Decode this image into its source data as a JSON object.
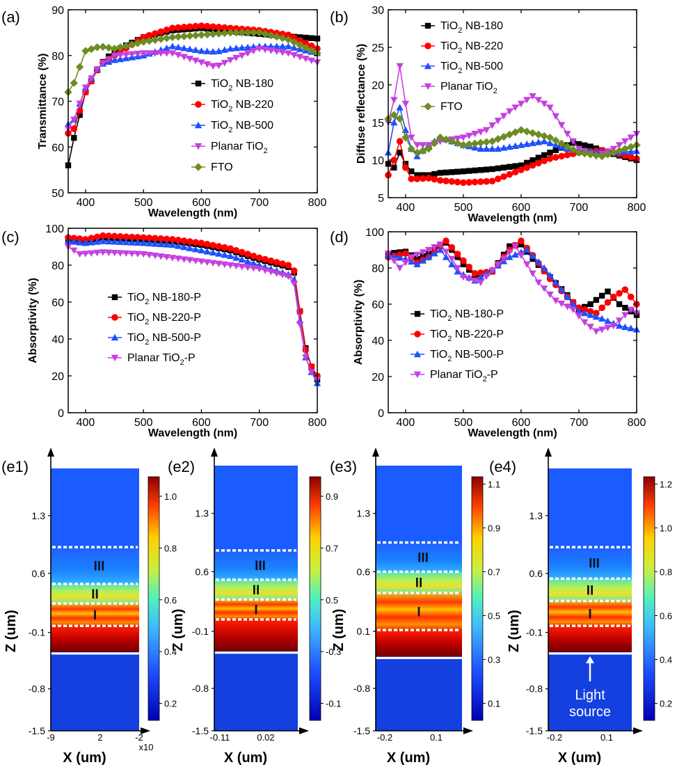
{
  "chart_data": [
    {
      "id": "a",
      "type": "line",
      "panel_label": "(a)",
      "xlabel": "Wavelength (nm)",
      "ylabel": "Transmittance (%)",
      "xlim": [
        370,
        800
      ],
      "ylim": [
        50,
        90
      ],
      "xticks": [
        400,
        500,
        600,
        700,
        800
      ],
      "yticks": [
        50,
        60,
        70,
        80,
        90
      ],
      "legend_position": "lower-right",
      "series": [
        {
          "name": "TiO2 NB-180",
          "label_main": "TiO",
          "label_sub": "2",
          "label_rest": " NB-180",
          "marker": "square",
          "color": "#000000",
          "x": [
            370,
            380,
            400,
            425,
            450,
            500,
            550,
            600,
            650,
            700,
            750,
            800
          ],
          "y": [
            56,
            62,
            72,
            78,
            81,
            84,
            85.5,
            86,
            85.3,
            84.7,
            84.2,
            83.7
          ]
        },
        {
          "name": "TiO2 NB-220",
          "label_main": "TiO",
          "label_sub": "2",
          "label_rest": " NB-220",
          "marker": "circle",
          "color": "#ff0000",
          "x": [
            370,
            380,
            400,
            425,
            450,
            500,
            550,
            600,
            650,
            700,
            750,
            800
          ],
          "y": [
            63,
            64,
            72,
            78,
            80,
            84,
            86,
            86.5,
            86,
            85.5,
            84.5,
            81.5
          ]
        },
        {
          "name": "TiO2 NB-500",
          "label_main": "TiO",
          "label_sub": "2",
          "label_rest": " NB-500",
          "marker": "triangle-up",
          "color": "#1f4fff",
          "x": [
            370,
            380,
            400,
            425,
            450,
            500,
            550,
            575,
            600,
            625,
            650,
            700,
            750,
            800
          ],
          "y": [
            65,
            66,
            73,
            78,
            79,
            80,
            82,
            81.5,
            81,
            80.8,
            81.5,
            82,
            82,
            80.5
          ]
        },
        {
          "name": "Planar TiO2",
          "label_main": "Planar TiO",
          "label_sub": "2",
          "label_rest": "",
          "marker": "triangle-down",
          "color": "#c53fe0",
          "x": [
            370,
            380,
            400,
            425,
            450,
            500,
            550,
            600,
            625,
            650,
            700,
            750,
            800
          ],
          "y": [
            64,
            66,
            73,
            78,
            80,
            80.5,
            80.5,
            78.5,
            77.5,
            79,
            81.5,
            80.5,
            78.5
          ]
        },
        {
          "name": "FTO",
          "label_main": "FTO",
          "label_sub": "",
          "label_rest": "",
          "marker": "diamond",
          "color": "#6e8c22",
          "x": [
            370,
            380,
            400,
            425,
            450,
            500,
            550,
            600,
            650,
            700,
            750,
            800
          ],
          "y": [
            72,
            74,
            81,
            82,
            81.5,
            83,
            84,
            84.5,
            85,
            85,
            83.5,
            80.5
          ]
        }
      ]
    },
    {
      "id": "b",
      "type": "line",
      "panel_label": "(b)",
      "xlabel": "Wavelength (nm)",
      "ylabel": "Diffuse reflectance (%)",
      "xlim": [
        370,
        800
      ],
      "ylim": [
        5,
        30
      ],
      "xticks": [
        400,
        500,
        600,
        700,
        800
      ],
      "yticks": [
        5,
        10,
        15,
        20,
        25,
        30
      ],
      "legend_position": "upper-right",
      "series": [
        {
          "name": "TiO2 NB-180",
          "label_main": "TiO",
          "label_sub": "2",
          "label_rest": " NB-180",
          "marker": "square",
          "color": "#000000",
          "x": [
            370,
            380,
            390,
            400,
            410,
            420,
            440,
            460,
            500,
            550,
            600,
            650,
            690,
            720,
            760,
            800
          ],
          "y": [
            9.5,
            9,
            11,
            9.5,
            8.5,
            8,
            8,
            8.3,
            8.5,
            8.8,
            9.3,
            11,
            12.3,
            11.8,
            10.8,
            10
          ]
        },
        {
          "name": "TiO2 NB-220",
          "label_main": "TiO",
          "label_sub": "2",
          "label_rest": " NB-220",
          "marker": "circle",
          "color": "#ff0000",
          "x": [
            370,
            380,
            390,
            400,
            410,
            420,
            440,
            460,
            500,
            550,
            600,
            650,
            700,
            740,
            770,
            800
          ],
          "y": [
            8,
            10,
            12.5,
            9,
            7.5,
            7.5,
            7.6,
            7.3,
            7,
            7.2,
            8.7,
            10.2,
            11,
            11.3,
            10.8,
            10.2
          ]
        },
        {
          "name": "TiO2 NB-500",
          "label_main": "TiO",
          "label_sub": "2",
          "label_rest": " NB-500",
          "marker": "triangle-up",
          "color": "#1f4fff",
          "x": [
            370,
            380,
            390,
            400,
            410,
            420,
            440,
            460,
            480,
            500,
            530,
            560,
            600,
            640,
            680,
            720,
            760,
            800
          ],
          "y": [
            11,
            15,
            17,
            14,
            11.5,
            10.5,
            12,
            13,
            12.5,
            12,
            11.5,
            11.5,
            12,
            12.5,
            11.5,
            11.2,
            11,
            11.2
          ]
        },
        {
          "name": "Planar TiO2",
          "label_main": "Planar TiO",
          "label_sub": "2",
          "label_rest": "",
          "marker": "triangle-down",
          "color": "#c53fe0",
          "x": [
            370,
            380,
            390,
            400,
            410,
            420,
            440,
            460,
            500,
            540,
            580,
            620,
            650,
            680,
            700,
            730,
            760,
            800
          ],
          "y": [
            15,
            18,
            22.5,
            17.5,
            13,
            12,
            12,
            12.5,
            13,
            14,
            16.5,
            18.5,
            17,
            13.5,
            11.5,
            10.5,
            11.5,
            13.5
          ]
        },
        {
          "name": "FTO",
          "label_main": "FTO",
          "label_sub": "",
          "label_rest": "",
          "marker": "diamond",
          "color": "#6e8c22",
          "x": [
            370,
            380,
            390,
            400,
            410,
            420,
            440,
            460,
            500,
            550,
            600,
            650,
            700,
            740,
            800
          ],
          "y": [
            15.5,
            16,
            15.5,
            13,
            11.5,
            11,
            11.5,
            13,
            12,
            12.5,
            14,
            13,
            11,
            10.5,
            12
          ]
        }
      ]
    },
    {
      "id": "c",
      "type": "line",
      "panel_label": "(c)",
      "xlabel": "Wavelength (nm)",
      "ylabel": "Absorptivity (%)",
      "xlim": [
        370,
        800
      ],
      "ylim": [
        0,
        100
      ],
      "xticks": [
        400,
        500,
        600,
        700,
        800
      ],
      "yticks": [
        0,
        20,
        40,
        60,
        80,
        100
      ],
      "legend_position": "middle-left",
      "series": [
        {
          "name": "TiO2 NB-180-P",
          "label_main": "TiO",
          "label_sub": "2",
          "label_rest": " NB-180-P",
          "marker": "square",
          "color": "#000000",
          "x": [
            370,
            400,
            430,
            500,
            550,
            600,
            650,
            700,
            750,
            760,
            770,
            780,
            790,
            800
          ],
          "y": [
            94,
            93,
            95,
            94,
            93,
            91,
            88,
            83,
            79,
            76,
            55,
            35,
            25,
            18
          ]
        },
        {
          "name": "TiO2 NB-220-P",
          "label_main": "TiO",
          "label_sub": "2",
          "label_rest": " NB-220-P",
          "marker": "circle",
          "color": "#ff0000",
          "x": [
            370,
            400,
            430,
            500,
            550,
            600,
            650,
            700,
            750,
            760,
            770,
            780,
            790,
            800
          ],
          "y": [
            95,
            94,
            96,
            95,
            94,
            92,
            89,
            84,
            80,
            77,
            55,
            34,
            25,
            20
          ]
        },
        {
          "name": "TiO2 NB-500-P",
          "label_main": "TiO",
          "label_sub": "2",
          "label_rest": " NB-500-P",
          "marker": "triangle-up",
          "color": "#1f4fff",
          "x": [
            370,
            400,
            430,
            500,
            550,
            600,
            650,
            700,
            750,
            760,
            770,
            780,
            790,
            800
          ],
          "y": [
            93,
            92,
            93,
            92,
            91,
            88,
            85,
            80,
            75,
            72,
            50,
            30,
            22,
            16
          ]
        },
        {
          "name": "Planar TiO2-P",
          "label_main": "Planar TiO",
          "label_sub": "2",
          "label_rest": "-P",
          "marker": "triangle-down",
          "color": "#c53fe0",
          "x": [
            370,
            390,
            430,
            500,
            550,
            600,
            650,
            700,
            750,
            760,
            770,
            780,
            790,
            800
          ],
          "y": [
            90,
            86,
            87,
            86,
            84,
            82,
            80,
            78,
            74,
            70,
            48,
            30,
            22,
            18
          ]
        }
      ]
    },
    {
      "id": "d",
      "type": "line",
      "panel_label": "(d)",
      "xlabel": "Wavelength (nm)",
      "ylabel": "Absorptivity (%)",
      "xlim": [
        370,
        800
      ],
      "ylim": [
        0,
        100
      ],
      "xticks": [
        400,
        500,
        600,
        700,
        800
      ],
      "yticks": [
        0,
        20,
        40,
        60,
        80,
        100
      ],
      "legend_position": "lower-right",
      "series": [
        {
          "name": "TiO2 NB-180-P",
          "label_main": "TiO",
          "label_sub": "2",
          "label_rest": " NB-180-P",
          "marker": "square",
          "color": "#000000",
          "x": [
            370,
            400,
            420,
            440,
            470,
            500,
            520,
            550,
            580,
            600,
            620,
            650,
            680,
            700,
            720,
            750,
            770,
            800
          ],
          "y": [
            88,
            89,
            85,
            88,
            94,
            82,
            76,
            78,
            92,
            93,
            85,
            75,
            65,
            57,
            60,
            67,
            60,
            54
          ]
        },
        {
          "name": "TiO2 NB-220-P",
          "label_main": "TiO",
          "label_sub": "2",
          "label_rest": " NB-220-P",
          "marker": "circle",
          "color": "#ff0000",
          "x": [
            370,
            400,
            420,
            440,
            470,
            500,
            520,
            550,
            580,
            600,
            620,
            650,
            680,
            700,
            730,
            760,
            780,
            800
          ],
          "y": [
            86,
            88,
            83,
            86,
            95,
            84,
            77,
            78,
            90,
            95,
            87,
            74,
            64,
            58,
            55,
            64,
            68,
            60
          ]
        },
        {
          "name": "TiO2 NB-500-P",
          "label_main": "TiO",
          "label_sub": "2",
          "label_rest": " NB-500-P",
          "marker": "triangle-up",
          "color": "#1f4fff",
          "x": [
            370,
            400,
            420,
            440,
            460,
            490,
            520,
            550,
            580,
            610,
            640,
            670,
            700,
            740,
            770,
            800
          ],
          "y": [
            87,
            85,
            82,
            86,
            90,
            78,
            73,
            79,
            86,
            90,
            80,
            68,
            56,
            52,
            48,
            46
          ]
        },
        {
          "name": "Planar TiO2-P",
          "label_main": "Planar TiO",
          "label_sub": "2",
          "label_rest": "-P",
          "marker": "triangle-down",
          "color": "#c53fe0",
          "x": [
            370,
            390,
            410,
            440,
            460,
            480,
            500,
            530,
            560,
            590,
            600,
            630,
            660,
            690,
            710,
            730,
            760,
            790,
            800
          ],
          "y": [
            88,
            80,
            86,
            90,
            93,
            85,
            75,
            72,
            82,
            92,
            87,
            72,
            62,
            57,
            50,
            45,
            48,
            57,
            55
          ]
        }
      ]
    },
    {
      "id": "e1",
      "type": "heatmap",
      "panel_label": "(e1)",
      "xlabel": "X (um)",
      "ylabel": "Z (um)",
      "xtick_labels": [
        "-9",
        "2",
        "-2"
      ],
      "x_multiplier": "x10",
      "ytick_labels": [
        "1.3",
        "0.6",
        "-0.1",
        "-0.8",
        "-1.5"
      ],
      "colorbar_ticks": [
        "1.0",
        "0.8",
        "0.6",
        "0.4",
        "0.2"
      ],
      "region_labels": [
        "III",
        "II",
        "I"
      ],
      "light_label": ""
    },
    {
      "id": "e2",
      "type": "heatmap",
      "panel_label": "(e2)",
      "xlabel": "X (um)",
      "ylabel": "Z (um)",
      "xtick_labels": [
        "-0.11",
        "0.02"
      ],
      "x_multiplier": "",
      "ytick_labels": [
        "1.3",
        "0.6",
        "-0.1",
        "-0.8",
        "-1.5"
      ],
      "colorbar_ticks": [
        "0.9",
        "0.7",
        "0.5",
        "0.3",
        "0.1"
      ],
      "colorbar_tick_signs": [
        "",
        "",
        "",
        "-",
        "-"
      ],
      "region_labels": [
        "III",
        "II",
        "I"
      ],
      "light_label": ""
    },
    {
      "id": "e3",
      "type": "heatmap",
      "panel_label": "(e3)",
      "xlabel": "X (um)",
      "ylabel": "Z (um)",
      "xtick_labels": [
        "-0.2",
        "0.1"
      ],
      "x_multiplier": "",
      "ytick_labels": [
        "1.3",
        "0.6",
        "0.1",
        "-0.8",
        "-1.5"
      ],
      "colorbar_ticks": [
        "1.1",
        "0.9",
        "0.7",
        "0.5",
        "0.3",
        "0.1"
      ],
      "region_labels": [
        "III",
        "II",
        "I"
      ],
      "light_label": ""
    },
    {
      "id": "e4",
      "type": "heatmap",
      "panel_label": "(e4)",
      "xlabel": "X (um)",
      "ylabel": "Z (um)",
      "xtick_labels": [
        "-0.2",
        "0.1"
      ],
      "x_multiplier": "",
      "ytick_labels": [
        "1.3",
        "0.6",
        "-0.1",
        "-0.8",
        "-1.5"
      ],
      "colorbar_ticks": [
        "1.2",
        "1.0",
        "0.8",
        "0.6",
        "0.4",
        "0.2"
      ],
      "region_labels": [
        "III",
        "II",
        "I"
      ],
      "light_label": "Light\nsource"
    }
  ]
}
